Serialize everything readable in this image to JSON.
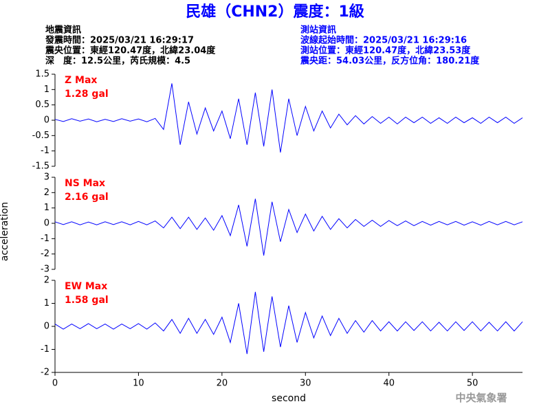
{
  "title": "民雄（CHN2）震度：1級",
  "info": {
    "left": [
      "地震資訊",
      "發震時間：2025/03/21 16:29:17",
      "震央位置：東經120.47度，北緯23.04度",
      "深　度：12.5公里，芮氏規模：4.5"
    ],
    "right": [
      "測站資訊",
      "波線起始時間：2025/03/21 16:29:16",
      "測站位置：東經120.47度，北緯23.53度",
      "震央距：54.03公里，反方位角：180.21度"
    ]
  },
  "ylabel": "acceleration",
  "footer": "中央氣象署",
  "chart_data": [
    {
      "type": "line",
      "annotation": [
        "Z Max",
        "1.28 gal"
      ],
      "xlim": [
        0,
        56
      ],
      "ylim": [
        -1.5,
        1.5
      ],
      "yticks": [
        -1.5,
        -1,
        -0.5,
        0,
        0.5,
        1,
        1.5
      ],
      "x": [
        0,
        1,
        2,
        3,
        4,
        5,
        6,
        7,
        8,
        9,
        10,
        11,
        12,
        13,
        14,
        15,
        16,
        17,
        18,
        19,
        20,
        21,
        22,
        23,
        24,
        25,
        26,
        27,
        28,
        29,
        30,
        31,
        32,
        33,
        34,
        35,
        36,
        37,
        38,
        39,
        40,
        41,
        42,
        43,
        44,
        45,
        46,
        47,
        48,
        49,
        50,
        51,
        52,
        53,
        54,
        55,
        56
      ],
      "series": [
        {
          "color": "#0000ff",
          "values": [
            0.03,
            -0.04,
            0.05,
            -0.03,
            0.04,
            -0.05,
            0.03,
            -0.04,
            0.05,
            -0.03,
            0.04,
            -0.05,
            0.06,
            -0.3,
            1.2,
            -0.8,
            0.6,
            -0.45,
            0.4,
            -0.35,
            0.3,
            -0.6,
            0.7,
            -0.8,
            0.9,
            -0.85,
            1.0,
            -1.05,
            0.7,
            -0.5,
            0.45,
            -0.35,
            0.3,
            -0.25,
            0.2,
            -0.15,
            0.15,
            -0.12,
            0.12,
            -0.1,
            0.1,
            -0.12,
            0.1,
            -0.08,
            0.1,
            -0.1,
            0.08,
            -0.1,
            0.1,
            -0.08,
            0.08,
            -0.1,
            0.1,
            -0.08,
            0.1,
            -0.1,
            0.08
          ]
        }
      ]
    },
    {
      "type": "line",
      "annotation": [
        "NS Max",
        "2.16 gal"
      ],
      "xlim": [
        0,
        56
      ],
      "ylim": [
        -3,
        3
      ],
      "yticks": [
        -3,
        -2,
        -1,
        0,
        1,
        2,
        3
      ],
      "x": [
        0,
        1,
        2,
        3,
        4,
        5,
        6,
        7,
        8,
        9,
        10,
        11,
        12,
        13,
        14,
        15,
        16,
        17,
        18,
        19,
        20,
        21,
        22,
        23,
        24,
        25,
        26,
        27,
        28,
        29,
        30,
        31,
        32,
        33,
        34,
        35,
        36,
        37,
        38,
        39,
        40,
        41,
        42,
        43,
        44,
        45,
        46,
        47,
        48,
        49,
        50,
        51,
        52,
        53,
        54,
        55,
        56
      ],
      "series": [
        {
          "color": "#0000ff",
          "values": [
            0.1,
            -0.08,
            0.1,
            -0.1,
            0.08,
            -0.1,
            0.1,
            -0.08,
            0.1,
            -0.1,
            0.12,
            -0.1,
            0.15,
            -0.3,
            0.4,
            -0.35,
            0.4,
            -0.4,
            0.35,
            -0.45,
            0.5,
            -0.8,
            1.2,
            -1.5,
            1.6,
            -2.1,
            1.4,
            -1.2,
            0.9,
            -0.6,
            0.6,
            -0.5,
            0.45,
            -0.4,
            0.3,
            -0.3,
            0.25,
            -0.2,
            0.2,
            -0.2,
            0.18,
            -0.15,
            0.15,
            -0.15,
            0.12,
            -0.12,
            0.12,
            -0.1,
            0.12,
            -0.12,
            0.1,
            -0.12,
            0.12,
            -0.1,
            0.12,
            -0.1,
            0.1
          ]
        }
      ]
    },
    {
      "type": "line",
      "annotation": [
        "EW Max",
        "1.58 gal"
      ],
      "xlabel": "second",
      "xlim": [
        0,
        56
      ],
      "ylim": [
        -2,
        2
      ],
      "yticks": [
        -2,
        -1,
        0,
        1,
        2
      ],
      "xticks": [
        0,
        10,
        20,
        30,
        40,
        50
      ],
      "x": [
        0,
        1,
        2,
        3,
        4,
        5,
        6,
        7,
        8,
        9,
        10,
        11,
        12,
        13,
        14,
        15,
        16,
        17,
        18,
        19,
        20,
        21,
        22,
        23,
        24,
        25,
        26,
        27,
        28,
        29,
        30,
        31,
        32,
        33,
        34,
        35,
        36,
        37,
        38,
        39,
        40,
        41,
        42,
        43,
        44,
        45,
        46,
        47,
        48,
        49,
        50,
        51,
        52,
        53,
        54,
        55,
        56
      ],
      "series": [
        {
          "color": "#0000ff",
          "values": [
            0.1,
            -0.12,
            0.1,
            -0.1,
            0.12,
            -0.1,
            0.1,
            -0.12,
            0.1,
            -0.1,
            0.12,
            -0.12,
            0.15,
            -0.2,
            0.3,
            -0.3,
            0.35,
            -0.3,
            0.3,
            -0.35,
            0.4,
            -0.7,
            1.0,
            -1.2,
            1.5,
            -1.1,
            1.3,
            -0.9,
            0.9,
            -0.7,
            0.6,
            -0.5,
            0.45,
            -0.4,
            0.35,
            -0.3,
            0.25,
            -0.25,
            0.25,
            -0.2,
            0.2,
            -0.2,
            0.2,
            -0.18,
            0.2,
            -0.2,
            0.18,
            -0.2,
            0.2,
            -0.18,
            0.2,
            -0.2,
            0.18,
            -0.2,
            0.2,
            -0.2,
            0.2
          ]
        }
      ]
    }
  ]
}
